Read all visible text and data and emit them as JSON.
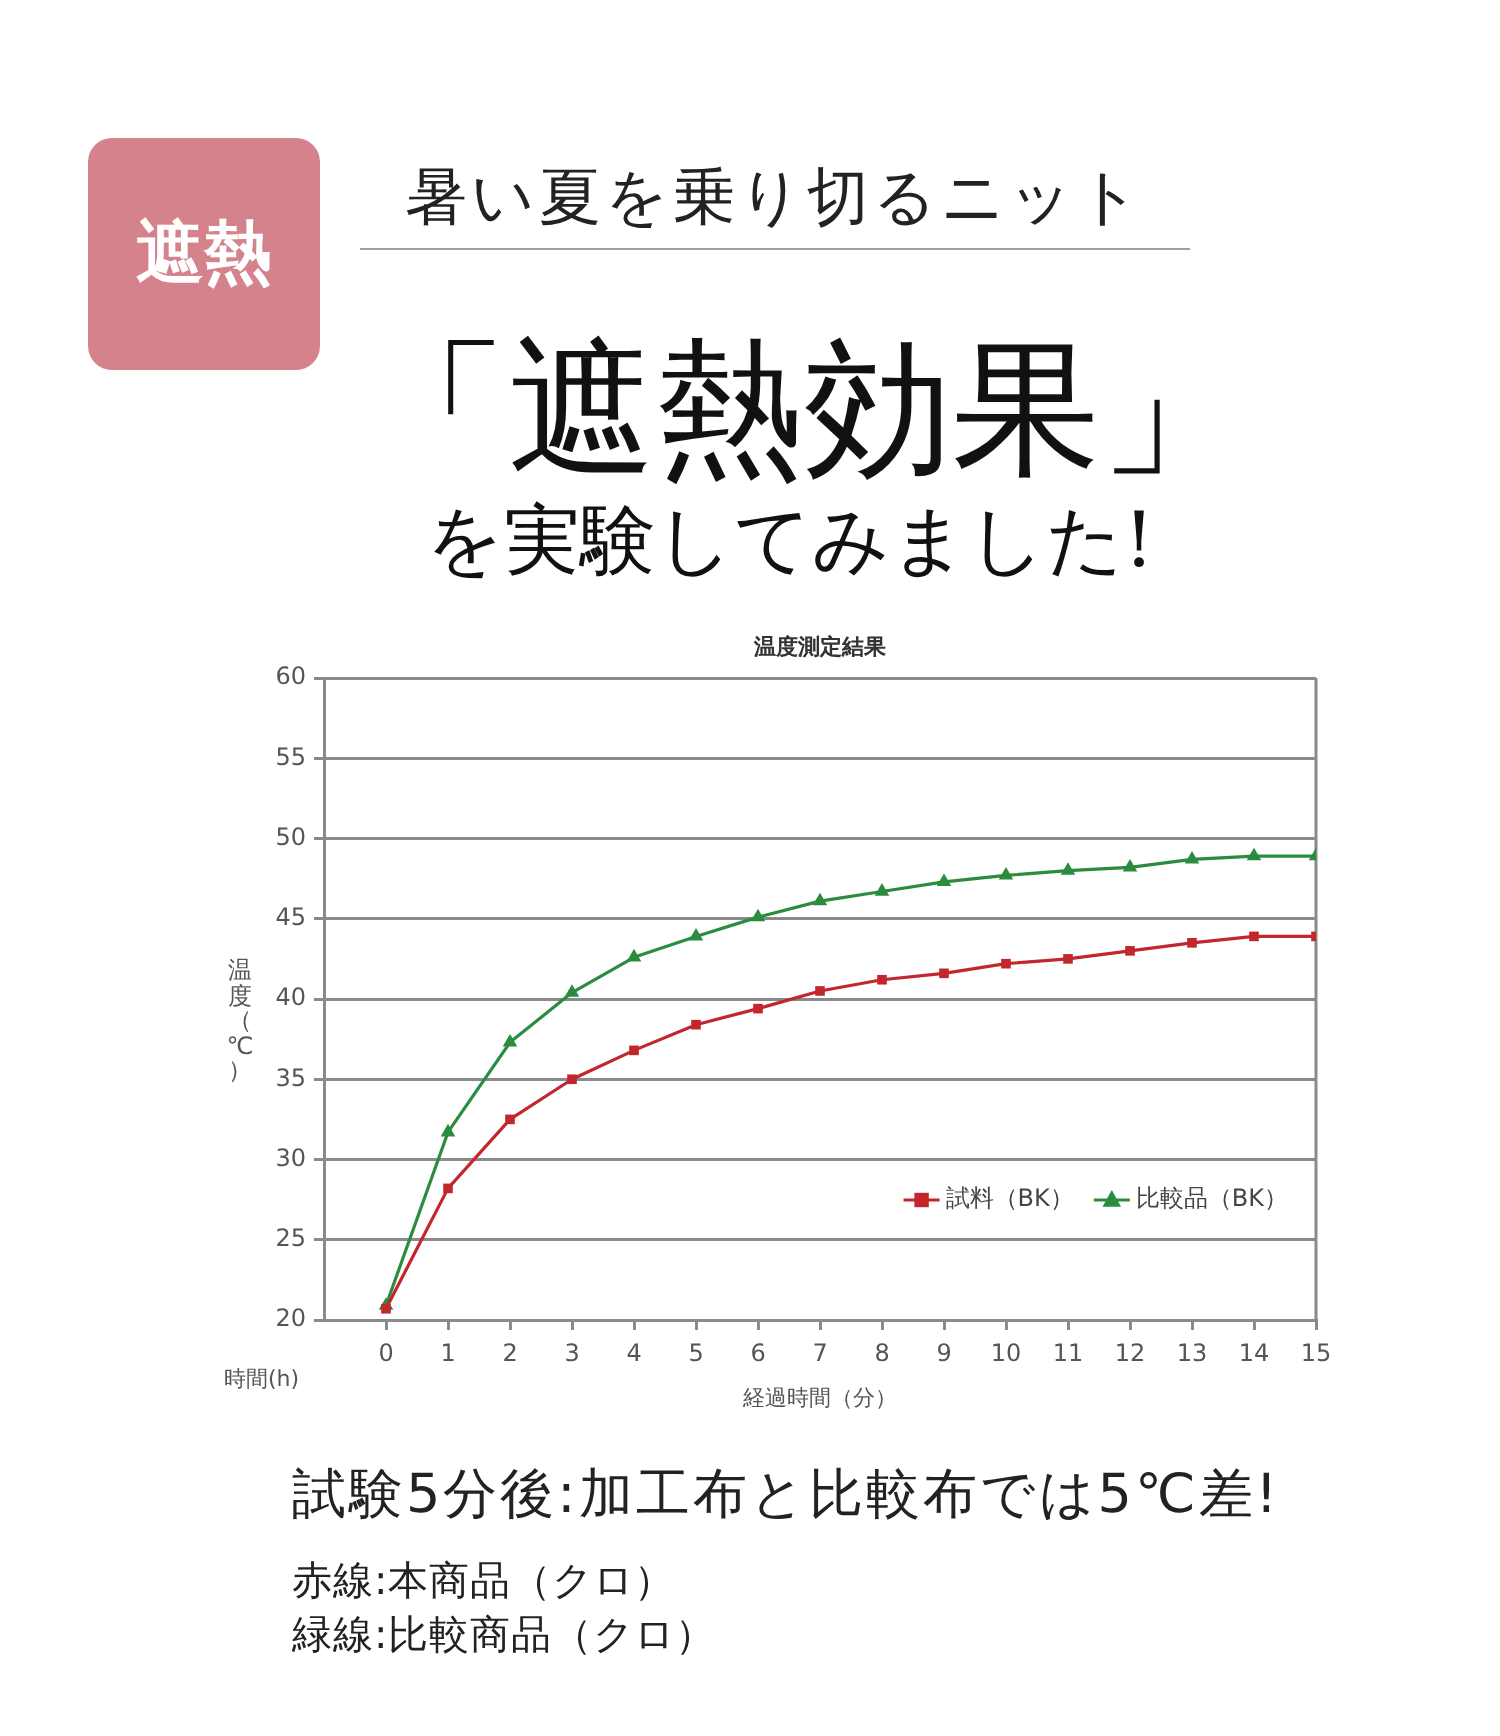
{
  "chart_data": {
    "type": "line",
    "title": "温度測定結果",
    "xlabel": "経過時間（分）",
    "ylabel": "温度（℃）",
    "annotations": [
      "遮熱",
      "暑い夏を乗り切るニット",
      "「遮熱効果」",
      "を実験してみました!",
      "時間(h)",
      "試験5分後:加工布と比較布では5℃差!",
      "赤線:本商品（クロ）",
      "緑線:比較商品（クロ）"
    ],
    "x": [
      0,
      1,
      2,
      3,
      4,
      5,
      6,
      7,
      8,
      9,
      10,
      11,
      12,
      13,
      14,
      15
    ],
    "series": [
      {
        "name": "試料（BK）",
        "color": "#c1272d",
        "marker": "square",
        "values": [
          20.7,
          28.2,
          32.5,
          35.0,
          36.8,
          38.4,
          39.4,
          40.5,
          41.2,
          41.6,
          42.2,
          42.5,
          43.0,
          43.5,
          43.9,
          43.9
        ]
      },
      {
        "name": "比較品（BK）",
        "color": "#2b8c3f",
        "marker": "triangle",
        "values": [
          20.9,
          31.7,
          37.3,
          40.4,
          42.6,
          43.9,
          45.1,
          46.1,
          46.7,
          47.3,
          47.7,
          48.0,
          48.2,
          48.7,
          48.9,
          48.9
        ]
      }
    ],
    "xlim": [
      -1,
      15
    ],
    "xticks": [
      0,
      1,
      2,
      3,
      4,
      5,
      6,
      7,
      8,
      9,
      10,
      11,
      12,
      13,
      14,
      15
    ],
    "ylim": [
      20,
      60
    ],
    "yticks": [
      20,
      25,
      30,
      35,
      40,
      45,
      50,
      55,
      60
    ],
    "grid": "y",
    "legend": "bottom right",
    "line_style": "solid"
  }
}
